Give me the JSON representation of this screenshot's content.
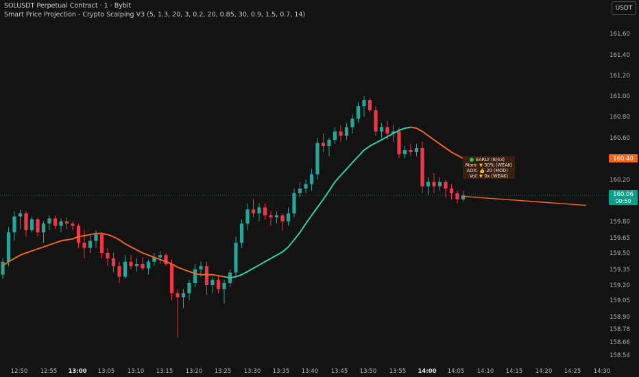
{
  "header": {
    "title": "SOLUSDT Perpetual Contract · 1 · Bybit",
    "indicator": "Smart Price Projection - Crypto Scalping V3 (5, 1.3, 20, 3, 0.2, 20, 0.85, 30, 0.9, 1.5, 0.7, 14)",
    "currency": "USDT"
  },
  "tooltip": {
    "status": "EARLY (8/43)",
    "rows": [
      {
        "key": "Mom:",
        "icon": "▼",
        "value": "30% (WEAK)"
      },
      {
        "key": "ADX:",
        "icon": "👍",
        "value": "20 (MOD)"
      },
      {
        "key": "Vol:",
        "icon": "▼",
        "value": "0x (WEAK)"
      }
    ]
  },
  "chart_data": {
    "type": "candlestick",
    "y_ticks": [
      "161.60",
      "161.40",
      "161.20",
      "161.00",
      "160.80",
      "160.60",
      "160.40",
      "160.20",
      "160.06",
      "159.80",
      "159.65",
      "159.50",
      "159.35",
      "159.20",
      "159.05",
      "158.90",
      "158.78",
      "158.66",
      "158.54"
    ],
    "x_ticks": [
      {
        "label": "12:50",
        "bold": false
      },
      {
        "label": "12:55",
        "bold": false
      },
      {
        "label": "13:00",
        "bold": true
      },
      {
        "label": "13:05",
        "bold": false
      },
      {
        "label": "13:10",
        "bold": false
      },
      {
        "label": "13:15",
        "bold": false
      },
      {
        "label": "13:20",
        "bold": false
      },
      {
        "label": "13:25",
        "bold": false
      },
      {
        "label": "13:30",
        "bold": false
      },
      {
        "label": "13:35",
        "bold": false
      },
      {
        "label": "13:40",
        "bold": false
      },
      {
        "label": "13:45",
        "bold": false
      },
      {
        "label": "13:50",
        "bold": false
      },
      {
        "label": "13:55",
        "bold": false
      },
      {
        "label": "14:00",
        "bold": true
      },
      {
        "label": "14:05",
        "bold": false
      },
      {
        "label": "14:10",
        "bold": false
      },
      {
        "label": "14:15",
        "bold": false
      },
      {
        "label": "14:20",
        "bold": false
      },
      {
        "label": "14:25",
        "bold": false
      },
      {
        "label": "14:30",
        "bold": false
      }
    ],
    "price_labels": [
      {
        "text": "160.40",
        "color": "#f0661a"
      },
      {
        "text": "160.06",
        "sub": "00:50",
        "color": "#0f9e88"
      }
    ],
    "colors": {
      "up": "#26a69a",
      "down": "#f23645",
      "ma_up": "#2dd4a8",
      "ma_down": "#f0661a",
      "projection": "#f0661a"
    }
  }
}
